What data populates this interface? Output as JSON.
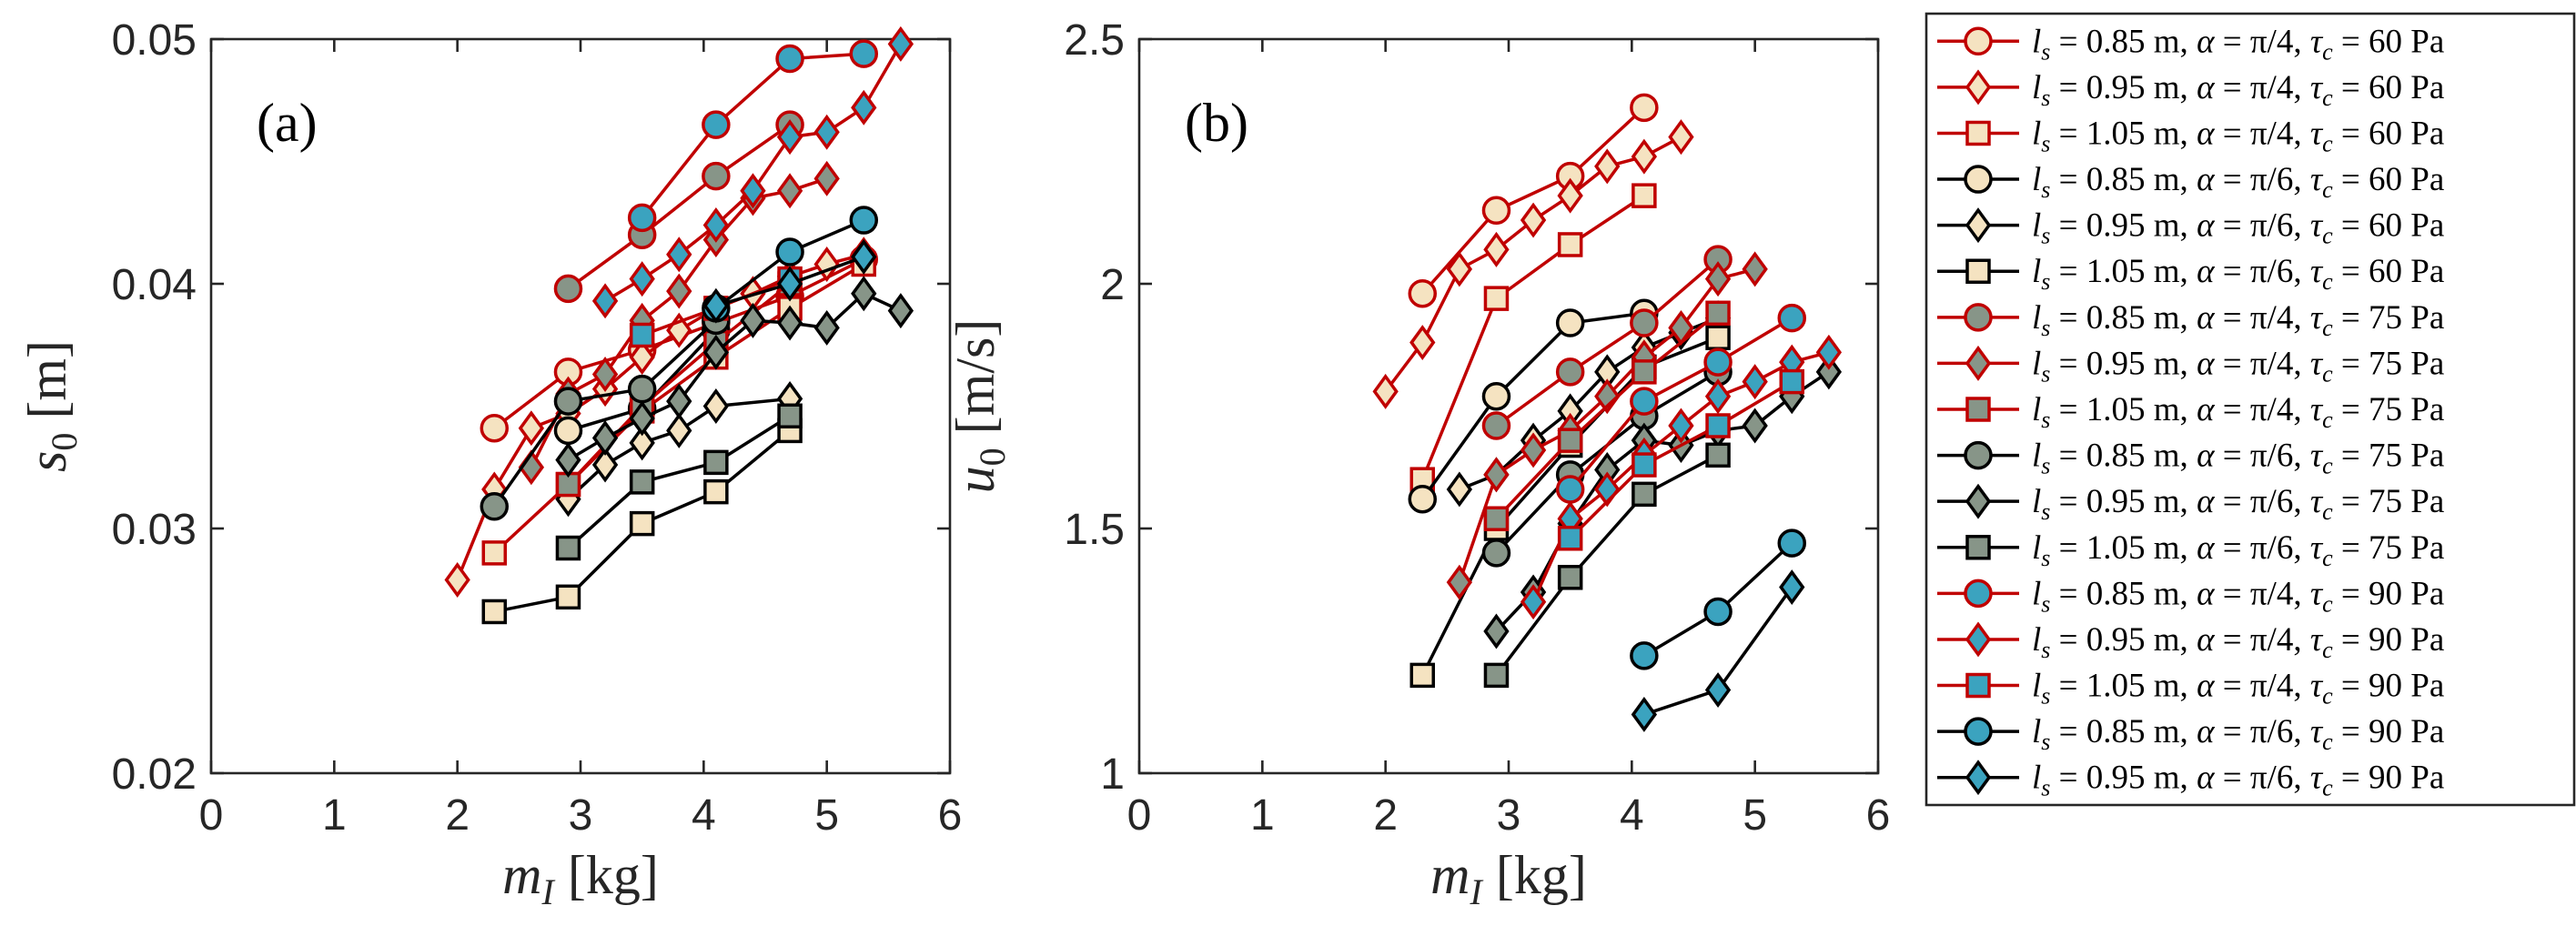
{
  "colors": {
    "red_line": "#c00000",
    "black_line": "#000000",
    "fill_60": "#f5e3c1",
    "fill_75": "#879588",
    "fill_90": "#3ba3bf"
  },
  "chart_data": [
    {
      "type": "line",
      "panel": "(a)",
      "xlabel": "m_I [kg]",
      "ylabel": "s_0 [m]",
      "xlim": [
        0,
        6
      ],
      "ylim": [
        0.02,
        0.05
      ],
      "xticks": [
        "0",
        "1",
        "2",
        "3",
        "4",
        "5",
        "6"
      ],
      "yticks": [
        "0.02",
        "0.03",
        "0.04",
        "0.05"
      ],
      "series": [
        {
          "name": "l_s = 0.85 m, α = π/4, τ_c = 60 Pa",
          "line": "red",
          "marker": "circle",
          "fill": "fill_60",
          "x": [
            2.3,
            2.9,
            3.5,
            4.1,
            4.7,
            5.3
          ],
          "y": [
            0.0341,
            0.0364,
            0.0373,
            0.0384,
            0.0395,
            0.041
          ]
        },
        {
          "name": "l_s = 0.95 m, α = π/4, τ_c = 60 Pa",
          "line": "red",
          "marker": "diamond",
          "fill": "fill_60",
          "x": [
            2.0,
            2.3,
            2.6,
            2.9,
            3.2,
            3.5,
            3.8,
            4.1,
            4.4,
            4.7,
            5.0,
            5.3
          ],
          "y": [
            0.0279,
            0.0316,
            0.0341,
            0.0347,
            0.0357,
            0.037,
            0.0381,
            0.039,
            0.0396,
            0.0403,
            0.0408,
            0.0412
          ]
        },
        {
          "name": "l_s = 1.05 m, α = π/4, τ_c = 60 Pa",
          "line": "red",
          "marker": "square",
          "fill": "fill_60",
          "x": [
            2.3,
            2.9,
            3.5,
            4.1,
            4.7,
            5.3
          ],
          "y": [
            0.029,
            0.0318,
            0.0348,
            0.037,
            0.039,
            0.0408
          ]
        },
        {
          "name": "l_s = 0.85 m, α = π/6, τ_c = 60 Pa",
          "line": "black",
          "marker": "circle",
          "fill": "fill_60",
          "x": [
            2.9,
            3.5,
            4.1
          ],
          "y": [
            0.034,
            0.0349,
            0.0381
          ]
        },
        {
          "name": "l_s = 0.95 m, α = π/6, τ_c = 60 Pa",
          "line": "black",
          "marker": "diamond",
          "fill": "fill_60",
          "x": [
            2.9,
            3.2,
            3.5,
            3.8,
            4.1,
            4.7
          ],
          "y": [
            0.0312,
            0.0326,
            0.0335,
            0.034,
            0.035,
            0.0353
          ]
        },
        {
          "name": "l_s = 1.05 m, α = π/6, τ_c = 60 Pa",
          "line": "black",
          "marker": "square",
          "fill": "fill_60",
          "x": [
            2.3,
            2.9,
            3.5,
            4.1,
            4.7
          ],
          "y": [
            0.0266,
            0.0272,
            0.0302,
            0.0315,
            0.034
          ]
        },
        {
          "name": "l_s = 0.85 m, α = π/4, τ_c = 75 Pa",
          "line": "red",
          "marker": "circle",
          "fill": "fill_75",
          "x": [
            2.9,
            3.5,
            4.1,
            4.7
          ],
          "y": [
            0.0398,
            0.042,
            0.0444,
            0.0465
          ]
        },
        {
          "name": "l_s = 0.95 m, α = π/4, τ_c = 75 Pa",
          "line": "red",
          "marker": "diamond",
          "fill": "fill_75",
          "x": [
            2.6,
            2.9,
            3.2,
            3.5,
            3.8,
            4.1,
            4.4,
            4.7,
            5.0
          ],
          "y": [
            0.0325,
            0.0355,
            0.0363,
            0.0385,
            0.0397,
            0.0418,
            0.0435,
            0.0438,
            0.0443
          ]
        },
        {
          "name": "l_s = 1.05 m, α = π/4, τ_c = 75 Pa",
          "line": "red",
          "marker": "square",
          "fill": "fill_75",
          "x": [
            2.9,
            3.5,
            4.1,
            4.7
          ],
          "y": [
            0.0318,
            0.035,
            0.0376,
            0.04
          ]
        },
        {
          "name": "l_s = 0.85 m, α = π/6, τ_c = 75 Pa",
          "line": "black",
          "marker": "circle",
          "fill": "fill_75",
          "x": [
            2.3,
            2.9,
            3.5,
            4.1
          ],
          "y": [
            0.0309,
            0.0352,
            0.0357,
            0.0385
          ]
        },
        {
          "name": "l_s = 0.95 m, α = π/6, τ_c = 75 Pa",
          "line": "black",
          "marker": "diamond",
          "fill": "fill_75",
          "x": [
            2.9,
            3.2,
            3.5,
            3.8,
            4.1,
            4.4,
            4.7,
            5.0,
            5.3,
            5.6
          ],
          "y": [
            0.0328,
            0.0337,
            0.0345,
            0.0352,
            0.0372,
            0.0385,
            0.0384,
            0.0382,
            0.0396,
            0.0389
          ]
        },
        {
          "name": "l_s = 1.05 m, α = π/6, τ_c = 75 Pa",
          "line": "black",
          "marker": "square",
          "fill": "fill_75",
          "x": [
            2.9,
            3.5,
            4.1,
            4.7
          ],
          "y": [
            0.0292,
            0.0319,
            0.0327,
            0.0346
          ]
        },
        {
          "name": "l_s = 0.85 m, α = π/4, τ_c = 90 Pa",
          "line": "red",
          "marker": "circle",
          "fill": "fill_90",
          "x": [
            3.5,
            4.1,
            4.7,
            5.3
          ],
          "y": [
            0.0427,
            0.0465,
            0.0492,
            0.0494
          ]
        },
        {
          "name": "l_s = 0.95 m, α = π/4, τ_c = 90 Pa",
          "line": "red",
          "marker": "diamond",
          "fill": "fill_90",
          "x": [
            3.2,
            3.5,
            3.8,
            4.1,
            4.4,
            4.7,
            5.0,
            5.3,
            5.6
          ],
          "y": [
            0.0393,
            0.0402,
            0.0412,
            0.0424,
            0.0438,
            0.046,
            0.0462,
            0.0472,
            0.0498
          ]
        },
        {
          "name": "l_s = 1.05 m, α = π/4, τ_c = 90 Pa",
          "line": "red",
          "marker": "square",
          "fill": "fill_90",
          "x": [
            3.5,
            4.1,
            4.7
          ],
          "y": [
            0.0379,
            0.039,
            0.0402
          ]
        },
        {
          "name": "l_s = 0.85 m, α = π/6, τ_c = 90 Pa",
          "line": "black",
          "marker": "circle",
          "fill": "fill_90",
          "x": [
            4.1,
            4.7,
            5.3
          ],
          "y": [
            0.039,
            0.0413,
            0.0426
          ]
        },
        {
          "name": "l_s = 0.95 m, α = π/6, τ_c = 90 Pa",
          "line": "black",
          "marker": "diamond",
          "fill": "fill_90",
          "x": [
            4.1,
            4.7,
            5.3
          ],
          "y": [
            0.0391,
            0.04,
            0.0411
          ]
        }
      ]
    },
    {
      "type": "line",
      "panel": "(b)",
      "xlabel": "m_I [kg]",
      "ylabel": "u_0 [m/s]",
      "xlim": [
        0,
        6
      ],
      "ylim": [
        1,
        2.5
      ],
      "xticks": [
        "0",
        "1",
        "2",
        "3",
        "4",
        "5",
        "6"
      ],
      "yticks": [
        "1",
        "1.5",
        "2",
        "2.5"
      ],
      "series": [
        {
          "name": "l_s = 0.85 m, α = π/4, τ_c = 60 Pa",
          "line": "red",
          "marker": "circle",
          "fill": "fill_60",
          "x": [
            2.3,
            2.9,
            3.5,
            4.1
          ],
          "y": [
            1.98,
            2.15,
            2.22,
            2.36
          ]
        },
        {
          "name": "l_s = 0.95 m, α = π/4, τ_c = 60 Pa",
          "line": "red",
          "marker": "diamond",
          "fill": "fill_60",
          "x": [
            2.0,
            2.3,
            2.6,
            2.9,
            3.2,
            3.5,
            3.8,
            4.1,
            4.4
          ],
          "y": [
            1.78,
            1.88,
            2.03,
            2.07,
            2.13,
            2.18,
            2.24,
            2.26,
            2.3
          ]
        },
        {
          "name": "l_s = 1.05 m, α = π/4, τ_c = 60 Pa",
          "line": "red",
          "marker": "square",
          "fill": "fill_60",
          "x": [
            2.3,
            2.9,
            3.5,
            4.1
          ],
          "y": [
            1.6,
            1.97,
            2.08,
            2.18
          ]
        },
        {
          "name": "l_s = 0.85 m, α = π/6, τ_c = 60 Pa",
          "line": "black",
          "marker": "circle",
          "fill": "fill_60",
          "x": [
            2.3,
            2.9,
            3.5,
            4.1
          ],
          "y": [
            1.56,
            1.77,
            1.92,
            1.94
          ]
        },
        {
          "name": "l_s = 0.95 m, α = π/6, τ_c = 60 Pa",
          "line": "black",
          "marker": "diamond",
          "fill": "fill_60",
          "x": [
            2.6,
            2.9,
            3.2,
            3.5,
            3.8,
            4.1,
            4.4,
            4.7
          ],
          "y": [
            1.58,
            1.61,
            1.68,
            1.74,
            1.82,
            1.87,
            1.9,
            1.93
          ]
        },
        {
          "name": "l_s = 1.05 m, α = π/6, τ_c = 60 Pa",
          "line": "black",
          "marker": "square",
          "fill": "fill_60",
          "x": [
            2.3,
            2.9,
            3.5,
            4.1,
            4.7
          ],
          "y": [
            1.2,
            1.5,
            1.67,
            1.83,
            1.89
          ]
        },
        {
          "name": "l_s = 0.85 m, α = π/4, τ_c = 75 Pa",
          "line": "red",
          "marker": "circle",
          "fill": "fill_75",
          "x": [
            2.9,
            3.5,
            4.1,
            4.7
          ],
          "y": [
            1.71,
            1.82,
            1.92,
            2.05
          ]
        },
        {
          "name": "l_s = 0.95 m, α = π/4, τ_c = 75 Pa",
          "line": "red",
          "marker": "diamond",
          "fill": "fill_75",
          "x": [
            2.6,
            2.9,
            3.2,
            3.5,
            3.8,
            4.1,
            4.4,
            4.7,
            5.0
          ],
          "y": [
            1.39,
            1.61,
            1.66,
            1.7,
            1.77,
            1.85,
            1.91,
            2.01,
            2.03
          ]
        },
        {
          "name": "l_s = 1.05 m, α = π/4, τ_c = 75 Pa",
          "line": "red",
          "marker": "square",
          "fill": "fill_75",
          "x": [
            2.9,
            3.5,
            4.1,
            4.7
          ],
          "y": [
            1.52,
            1.68,
            1.82,
            1.94
          ]
        },
        {
          "name": "l_s = 0.85 m, α = π/6, τ_c = 75 Pa",
          "line": "black",
          "marker": "circle",
          "fill": "fill_75",
          "x": [
            2.9,
            3.5,
            4.1,
            4.7
          ],
          "y": [
            1.45,
            1.61,
            1.73,
            1.82
          ]
        },
        {
          "name": "l_s = 0.95 m, α = π/6, τ_c = 75 Pa",
          "line": "black",
          "marker": "diamond",
          "fill": "fill_75",
          "x": [
            2.9,
            3.2,
            3.5,
            3.8,
            4.1,
            4.4,
            4.7,
            5.0,
            5.3,
            5.6
          ],
          "y": [
            1.29,
            1.37,
            1.51,
            1.62,
            1.68,
            1.67,
            1.7,
            1.71,
            1.77,
            1.82
          ]
        },
        {
          "name": "l_s = 1.05 m, α = π/6, τ_c = 75 Pa",
          "line": "black",
          "marker": "square",
          "fill": "fill_75",
          "x": [
            2.9,
            3.5,
            4.1,
            4.7
          ],
          "y": [
            1.2,
            1.4,
            1.57,
            1.65
          ]
        },
        {
          "name": "l_s = 0.85 m, α = π/4, τ_c = 90 Pa",
          "line": "red",
          "marker": "circle",
          "fill": "fill_90",
          "x": [
            3.5,
            4.1,
            4.7,
            5.3
          ],
          "y": [
            1.58,
            1.76,
            1.84,
            1.93
          ]
        },
        {
          "name": "l_s = 0.95 m, α = π/4, τ_c = 90 Pa",
          "line": "red",
          "marker": "diamond",
          "fill": "fill_90",
          "x": [
            3.2,
            3.5,
            3.8,
            4.1,
            4.4,
            4.7,
            5.0,
            5.3,
            5.6
          ],
          "y": [
            1.35,
            1.52,
            1.58,
            1.65,
            1.71,
            1.77,
            1.8,
            1.84,
            1.86
          ]
        },
        {
          "name": "l_s = 1.05 m, α = π/4, τ_c = 90 Pa",
          "line": "red",
          "marker": "square",
          "fill": "fill_90",
          "x": [
            3.5,
            4.1,
            4.7,
            5.3
          ],
          "y": [
            1.48,
            1.63,
            1.71,
            1.8
          ]
        },
        {
          "name": "l_s = 0.85 m, α = π/6, τ_c = 90 Pa",
          "line": "black",
          "marker": "circle",
          "fill": "fill_90",
          "x": [
            4.1,
            4.7,
            5.3
          ],
          "y": [
            1.24,
            1.33,
            1.47
          ]
        },
        {
          "name": "l_s = 0.95 m, α = π/6, τ_c = 90 Pa",
          "line": "black",
          "marker": "diamond",
          "fill": "fill_90",
          "x": [
            4.1,
            4.7,
            5.3
          ],
          "y": [
            1.12,
            1.17,
            1.38
          ]
        }
      ]
    }
  ],
  "legend": {
    "entries": [
      {
        "ls": "0.85",
        "alpha": "π/4",
        "tau": "60",
        "line": "red",
        "marker": "circle",
        "fill": "fill_60"
      },
      {
        "ls": "0.95",
        "alpha": "π/4",
        "tau": "60",
        "line": "red",
        "marker": "diamond",
        "fill": "fill_60"
      },
      {
        "ls": "1.05",
        "alpha": "π/4",
        "tau": "60",
        "line": "red",
        "marker": "square",
        "fill": "fill_60"
      },
      {
        "ls": "0.85",
        "alpha": "π/6",
        "tau": "60",
        "line": "black",
        "marker": "circle",
        "fill": "fill_60"
      },
      {
        "ls": "0.95",
        "alpha": "π/6",
        "tau": "60",
        "line": "black",
        "marker": "diamond",
        "fill": "fill_60"
      },
      {
        "ls": "1.05",
        "alpha": "π/6",
        "tau": "60",
        "line": "black",
        "marker": "square",
        "fill": "fill_60"
      },
      {
        "ls": "0.85",
        "alpha": "π/4",
        "tau": "75",
        "line": "red",
        "marker": "circle",
        "fill": "fill_75"
      },
      {
        "ls": "0.95",
        "alpha": "π/4",
        "tau": "75",
        "line": "red",
        "marker": "diamond",
        "fill": "fill_75"
      },
      {
        "ls": "1.05",
        "alpha": "π/4",
        "tau": "75",
        "line": "red",
        "marker": "square",
        "fill": "fill_75"
      },
      {
        "ls": "0.85",
        "alpha": "π/6",
        "tau": "75",
        "line": "black",
        "marker": "circle",
        "fill": "fill_75"
      },
      {
        "ls": "0.95",
        "alpha": "π/6",
        "tau": "75",
        "line": "black",
        "marker": "diamond",
        "fill": "fill_75"
      },
      {
        "ls": "1.05",
        "alpha": "π/6",
        "tau": "75",
        "line": "black",
        "marker": "square",
        "fill": "fill_75"
      },
      {
        "ls": "0.85",
        "alpha": "π/4",
        "tau": "90",
        "line": "red",
        "marker": "circle",
        "fill": "fill_90"
      },
      {
        "ls": "0.95",
        "alpha": "π/4",
        "tau": "90",
        "line": "red",
        "marker": "diamond",
        "fill": "fill_90"
      },
      {
        "ls": "1.05",
        "alpha": "π/4",
        "tau": "90",
        "line": "red",
        "marker": "square",
        "fill": "fill_90"
      },
      {
        "ls": "0.85",
        "alpha": "π/6",
        "tau": "90",
        "line": "black",
        "marker": "circle",
        "fill": "fill_90"
      },
      {
        "ls": "0.95",
        "alpha": "π/6",
        "tau": "90",
        "line": "black",
        "marker": "diamond",
        "fill": "fill_90"
      }
    ]
  }
}
